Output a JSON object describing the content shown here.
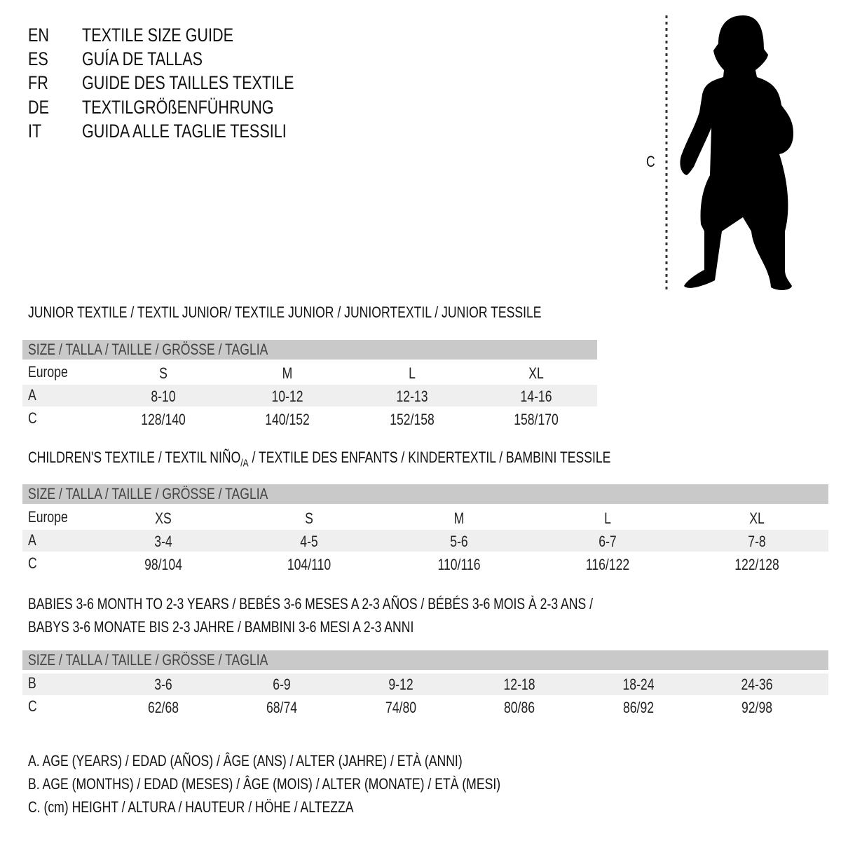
{
  "header": [
    {
      "code": "EN",
      "title": "TEXTILE SIZE GUIDE"
    },
    {
      "code": "ES",
      "title": "GUÍA DE TALLAS"
    },
    {
      "code": "FR",
      "title": "GUIDE DES TAILLES TEXTILE"
    },
    {
      "code": "DE",
      "title": "TEXTILGRÖßENFÜHRUNG"
    },
    {
      "code": "IT",
      "title": "GUIDA ALLE TAGLIE TESSILI"
    }
  ],
  "figure": {
    "measure_label": "C",
    "icon": "child-silhouette-icon"
  },
  "size_header": "SIZE / TALLA / TAILLE / GRÖSSE / TAGLIA",
  "junior": {
    "title": "JUNIOR TEXTILE / TEXTIL JUNIOR/ TEXTILE JUNIOR / JUNIORTEXTIL / JUNIOR TESSILE",
    "rows": [
      {
        "label": "Europe",
        "values": [
          "S",
          "M",
          "L",
          "XL"
        ]
      },
      {
        "label": "A",
        "values": [
          "8-10",
          "10-12",
          "12-13",
          "14-16"
        ]
      },
      {
        "label": "C",
        "values": [
          "128/140",
          "140/152",
          "152/158",
          "158/170"
        ]
      }
    ]
  },
  "children": {
    "title": "CHILDREN'S TEXTILE / TEXTIL NIÑO",
    "title_sub": "/A",
    "title_rest": " / TEXTILE DES ENFANTS / KINDERTEXTIL / BAMBINI TESSILE",
    "rows": [
      {
        "label": "Europe",
        "values": [
          "XS",
          "S",
          "M",
          "L",
          "XL"
        ]
      },
      {
        "label": "A",
        "values": [
          "3-4",
          "4-5",
          "5-6",
          "6-7",
          "7-8"
        ]
      },
      {
        "label": "C",
        "values": [
          "98/104",
          "104/110",
          "110/116",
          "116/122",
          "122/128"
        ]
      }
    ]
  },
  "babies": {
    "title_line1": "BABIES 3-6 MONTH TO 2-3 YEARS / BEBÉS 3-6 MESES A 2-3 AÑOS / BÉBÉS 3-6 MOIS À 2-3 ANS /",
    "title_line2": "BABYS 3-6 MONATE BIS 2-3 JAHRE / BAMBINI 3-6 MESI A 2-3 ANNI",
    "rows": [
      {
        "label": "B",
        "values": [
          "3-6",
          "6-9",
          "9-12",
          "12-18",
          "18-24",
          "24-36"
        ]
      },
      {
        "label": "C",
        "values": [
          "62/68",
          "68/74",
          "74/80",
          "80/86",
          "86/92",
          "92/98"
        ]
      }
    ]
  },
  "legend": [
    "A. AGE (YEARS) / EDAD (AÑOS) / ÂGE (ANS) / ALTER (JAHRE) / ETÀ (ANNI)",
    "B. AGE (MONTHS) / EDAD (MESES) / ÂGE (MOIS) / ALTER (MONATE) / ETÀ (MESI)",
    "C. (cm) HEIGHT / ALTURA / HAUTEUR / HÖHE / ALTEZZA"
  ],
  "colors": {
    "header_bar": "#c9c9c9",
    "stripe": "#efefef",
    "text": "#111111"
  }
}
